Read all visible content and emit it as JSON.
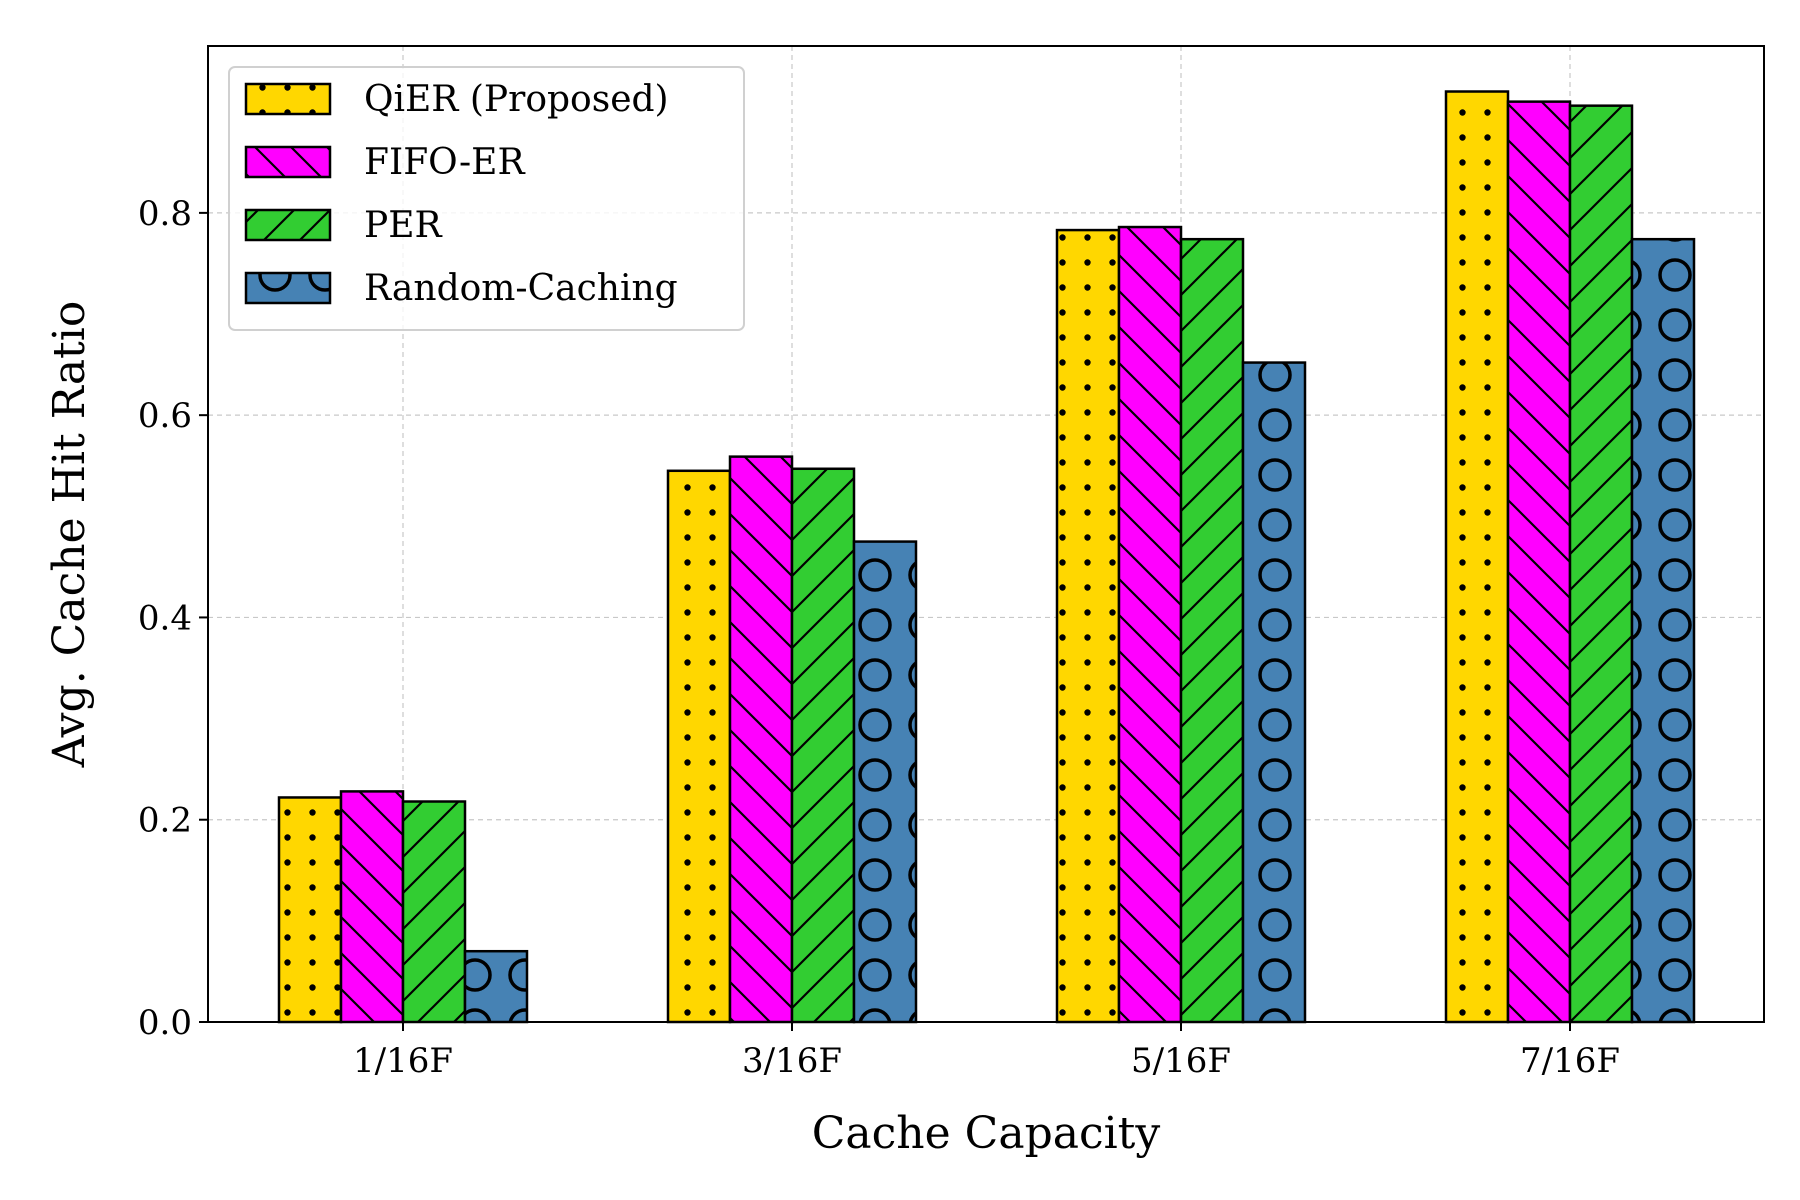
{
  "chart_data": {
    "type": "bar",
    "title": "",
    "xlabel": "Cache Capacity",
    "ylabel": "Avg. Cache Hit Ratio",
    "categories": [
      "1/16F",
      "3/16F",
      "5/16F",
      "7/16F"
    ],
    "ylim": [
      0,
      0.965
    ],
    "yticks": [
      "0.0",
      "0.2",
      "0.4",
      "0.6",
      "0.8"
    ],
    "grid": true,
    "legend_position": "upper-left",
    "series": [
      {
        "name": "QiER (Proposed)",
        "color": "#FFD700",
        "hatch": "dots",
        "values": [
          0.222,
          0.545,
          0.783,
          0.92
        ]
      },
      {
        "name": "FIFO-ER",
        "color": "#FF00FF",
        "hatch": "backslash",
        "values": [
          0.228,
          0.559,
          0.786,
          0.91
        ]
      },
      {
        "name": "PER",
        "color": "#32CD32",
        "hatch": "slash",
        "values": [
          0.218,
          0.547,
          0.774,
          0.906
        ]
      },
      {
        "name": "Random-Caching",
        "color": "#4682B4",
        "hatch": "circles",
        "values": [
          0.07,
          0.475,
          0.652,
          0.774
        ]
      }
    ]
  }
}
